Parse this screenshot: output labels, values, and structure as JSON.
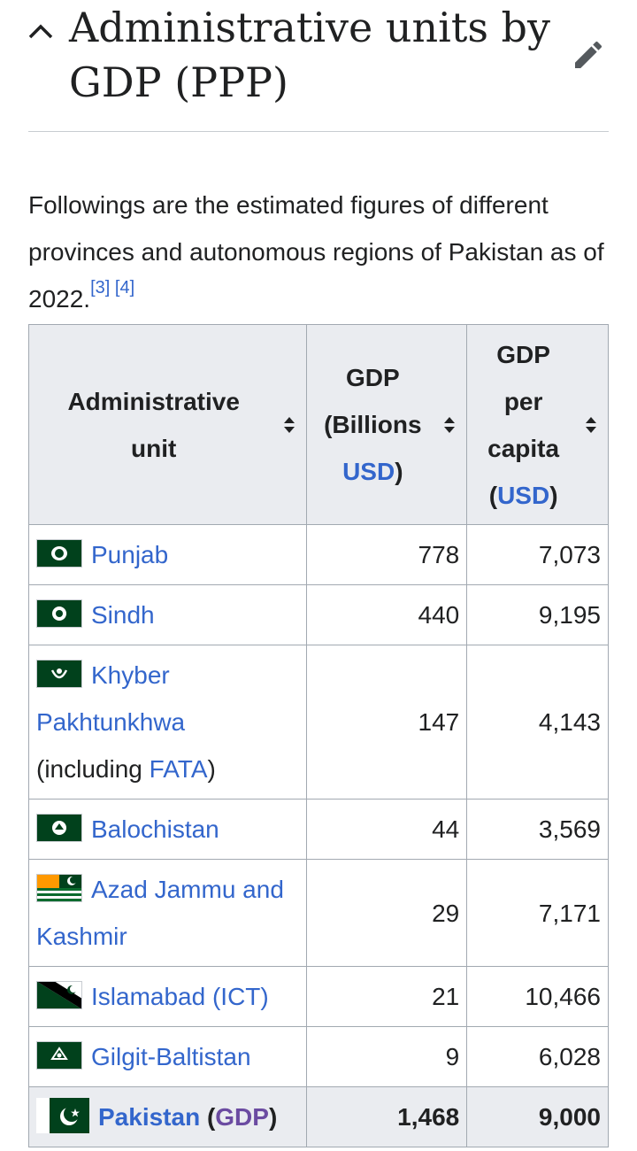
{
  "section": {
    "title": "Administrative units by GDP (PPP)",
    "intro_text": "Followings are the estimated figures of different provinces and autonomous regions of Pakistan as of 2022.",
    "refs": [
      "[3]",
      "[4]"
    ]
  },
  "table": {
    "headers": {
      "unit": "Administrative unit",
      "gdp_prefix": "GDP (Billions",
      "gdp_link": "USD",
      "gdp_suffix": ")",
      "pc_prefix": "GDP per capita (",
      "pc_link": "USD",
      "pc_suffix": ")"
    },
    "rows": [
      {
        "name": "Punjab",
        "gdp": "778",
        "per_capita": "7,073"
      },
      {
        "name": "Sindh",
        "gdp": "440",
        "per_capita": "9,195"
      },
      {
        "name": "Khyber Pakhtunkhwa",
        "note_prefix": "(including ",
        "note_link": "FATA",
        "note_suffix": ")",
        "gdp": "147",
        "per_capita": "4,143"
      },
      {
        "name": "Balochistan",
        "gdp": "44",
        "per_capita": "3,569"
      },
      {
        "name": "Azad Jammu and Kashmir",
        "gdp": "29",
        "per_capita": "7,171"
      },
      {
        "name": "Islamabad (ICT)",
        "gdp": "21",
        "per_capita": "10,466"
      },
      {
        "name": "Gilgit-Baltistan",
        "gdp": "9",
        "per_capita": "6,028"
      }
    ],
    "total": {
      "name": "Pakistan",
      "paren_open": " (",
      "link": "GDP",
      "paren_close": ")",
      "gdp": "1,468",
      "per_capita": "9,000"
    }
  },
  "icons": {
    "collapse": "chevron-up-icon",
    "edit": "pencil-icon",
    "sort": "sort-arrows-icon"
  },
  "colors": {
    "link": "#3366cc",
    "visited_link": "#6b4ba1",
    "header_bg": "#eaecf0",
    "pakistan_green": "#01411c"
  }
}
